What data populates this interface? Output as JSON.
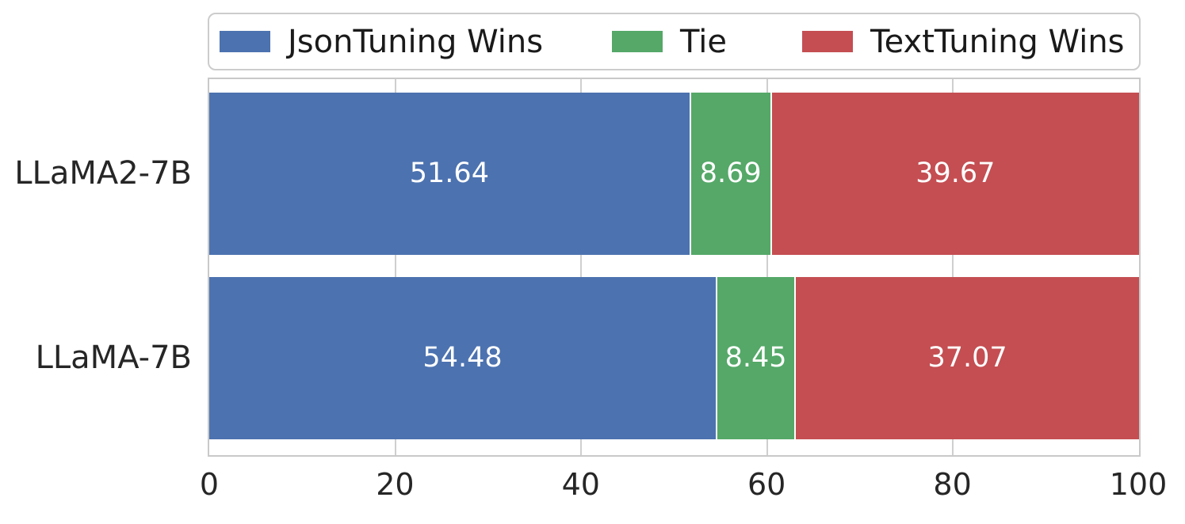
{
  "chart_data": {
    "type": "bar",
    "orientation": "horizontal",
    "stacked": true,
    "title": "",
    "xlabel": "",
    "ylabel": "",
    "categories": [
      "LLaMA2-7B",
      "LLaMA-7B"
    ],
    "series": [
      {
        "name": "JsonTuning Wins",
        "color": "#4C72B0",
        "values": [
          51.64,
          54.48
        ]
      },
      {
        "name": "Tie",
        "color": "#55A868",
        "values": [
          8.69,
          8.45
        ]
      },
      {
        "name": "TextTuning Wins",
        "color": "#C44E52",
        "values": [
          39.67,
          37.07
        ]
      }
    ],
    "bar_value_labels": [
      [
        "51.64",
        "8.69",
        "39.67"
      ],
      [
        "54.48",
        "8.45",
        "37.07"
      ]
    ],
    "xlim": [
      0,
      100
    ],
    "x_ticks": [
      "0",
      "20",
      "40",
      "60",
      "80",
      "100"
    ],
    "grid": true,
    "legend_position": "top",
    "bar_label_color": "#ffffff",
    "grid_color": "#cfcfcf",
    "axis_border_color": "#c9c9c9",
    "text_color": "#262626"
  }
}
